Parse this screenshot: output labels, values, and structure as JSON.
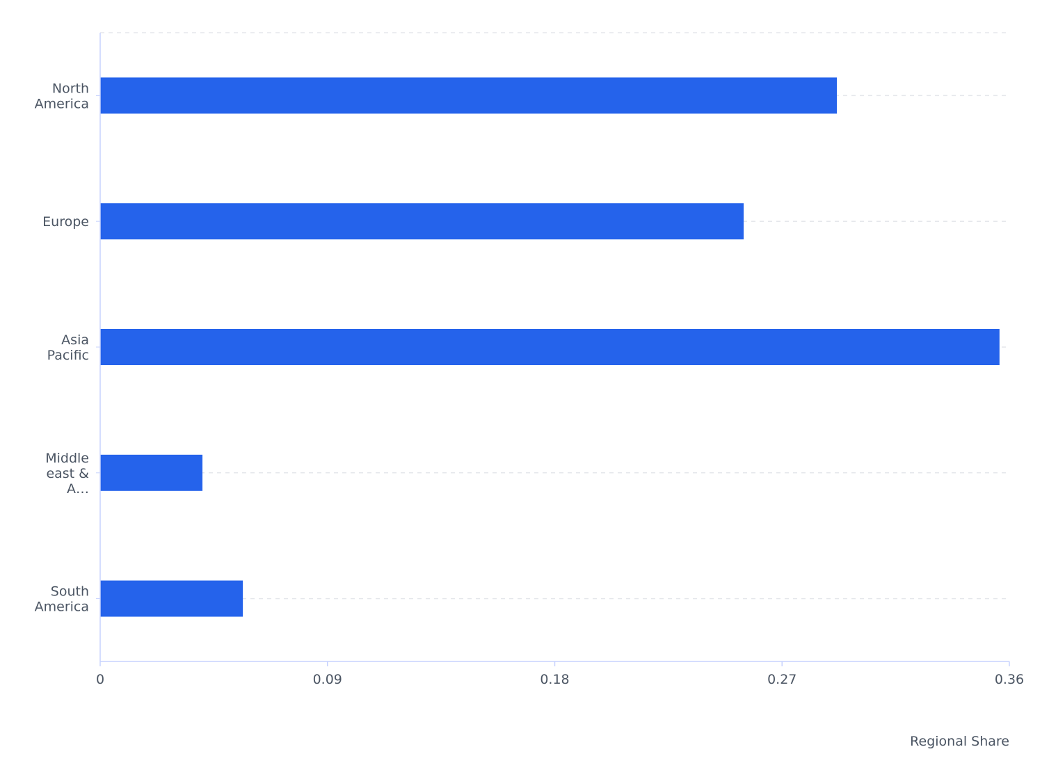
{
  "chart_data": {
    "type": "bar",
    "orientation": "horizontal",
    "categories": [
      "North\nAmerica",
      "Europe",
      "Asia\nPacific",
      "Middle\neast &\nA…",
      "South\nAmerica"
    ],
    "values": [
      0.2917,
      0.2548,
      0.3561,
      0.0405,
      0.0565
    ],
    "xlabel": "Regional Share",
    "ylabel": "",
    "xlim": [
      0,
      0.36
    ],
    "xticks": [
      "0",
      "0.09",
      "0.18",
      "0.27",
      "0.36"
    ],
    "grid": "horizontal dashed",
    "bar_color": "#2563eb",
    "axis_color": "#c7d2fe"
  }
}
